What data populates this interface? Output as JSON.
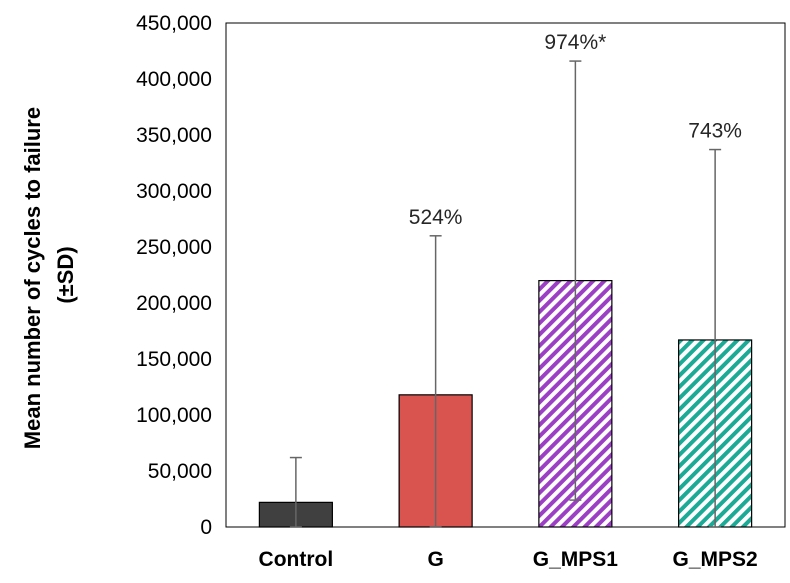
{
  "chart_data": {
    "type": "bar",
    "title": "",
    "xlabel": "",
    "ylabel_line1": "Mean number of cycles to failure",
    "ylabel_line2": "(±SD)",
    "ylim": [
      0,
      450000
    ],
    "yticks": [
      0,
      50000,
      100000,
      150000,
      200000,
      250000,
      300000,
      350000,
      400000,
      450000
    ],
    "ytick_labels": [
      "0",
      "50,000",
      "100,000",
      "150,000",
      "200,000",
      "250,000",
      "300,000",
      "350,000",
      "400,000",
      "450,000"
    ],
    "grid": false,
    "categories": [
      "Control",
      "G",
      "G_MPS1",
      "G_MPS2"
    ],
    "values": [
      22000,
      118000,
      220000,
      167000
    ],
    "sd": [
      40000,
      142000,
      196000,
      170000
    ],
    "data_labels": [
      "",
      "524%",
      "974%*",
      "743%"
    ],
    "colors": [
      "#404040",
      "#d9534f",
      "#9b3fc4",
      "#1aaa96"
    ],
    "patterns": [
      "solid",
      "solid",
      "diagonal-stripes",
      "diagonal-stripes"
    ]
  }
}
